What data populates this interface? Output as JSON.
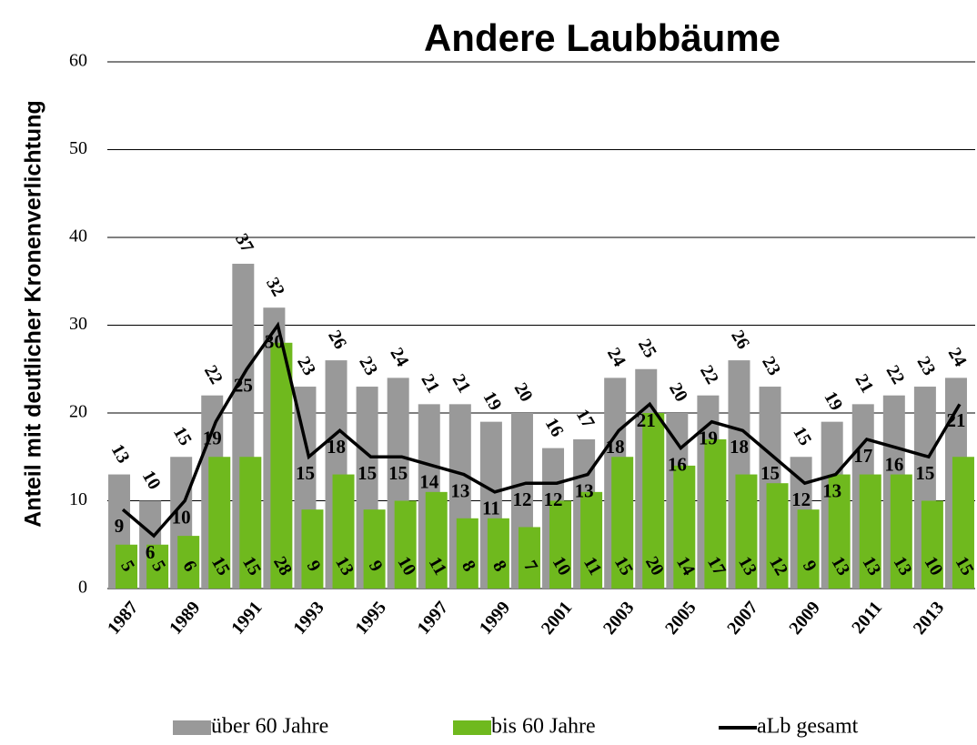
{
  "chart_data": {
    "type": "bar",
    "title": "Andere Laubbäume",
    "y_label": "Anteil mit deutlicher Kronenverlichtung",
    "categories": [
      "1987",
      null,
      "1989",
      null,
      "1991",
      null,
      "1993",
      null,
      "1995",
      null,
      "1997",
      null,
      "1999",
      null,
      "2001",
      null,
      "2003",
      null,
      "2005",
      null,
      "2007",
      null,
      "2009",
      null,
      "2011",
      null,
      "2013",
      null
    ],
    "series": [
      {
        "name": "über 60 Jahre",
        "type": "bar",
        "color": "#999999",
        "values": [
          13,
          10,
          15,
          22,
          37,
          32,
          23,
          26,
          23,
          24,
          21,
          21,
          19,
          20,
          16,
          17,
          24,
          25,
          20,
          22,
          26,
          23,
          15,
          19,
          21,
          22,
          23,
          24
        ]
      },
      {
        "name": "bis 60 Jahre",
        "type": "bar",
        "color": "#6fb91e",
        "values": [
          5,
          5,
          6,
          15,
          15,
          28,
          9,
          13,
          9,
          10,
          11,
          8,
          8,
          7,
          10,
          11,
          15,
          20,
          14,
          17,
          13,
          12,
          9,
          13,
          13,
          13,
          10,
          15
        ]
      },
      {
        "name": "aLb gesamt",
        "type": "line",
        "color": "#000000",
        "values": [
          9,
          6,
          10,
          19,
          25,
          30,
          15,
          18,
          15,
          15,
          14,
          13,
          11,
          12,
          12,
          13,
          18,
          21,
          16,
          19,
          18,
          15,
          12,
          13,
          17,
          16,
          15,
          21
        ]
      }
    ],
    "ylim": [
      0,
      60
    ],
    "yticks": [
      0,
      10,
      20,
      30,
      40,
      50,
      60
    ],
    "grid": true,
    "legend": "bottom"
  }
}
